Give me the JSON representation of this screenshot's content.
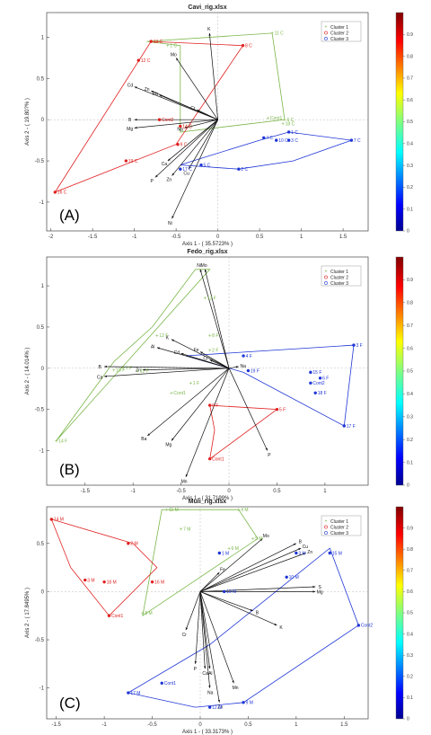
{
  "colors": {
    "cluster1": "#7ab648",
    "cluster2": "#e02020",
    "cluster3": "#1f36d6",
    "vector": "#111111"
  },
  "legend": [
    "Cluster 1",
    "Cluster 2",
    "Cluster 3"
  ],
  "colorbar_ticks": [
    "0",
    "0.1",
    "0.2",
    "0.3",
    "0.4",
    "0.5",
    "0.6",
    "0.7",
    "0.8",
    "0.9"
  ],
  "chart_data": [
    {
      "type": "scatter",
      "panel": "(A)",
      "title": "Cavi_rig.xlsx",
      "xlabel": "Axis 1 - ( 35.5723% )",
      "ylabel": "Axis 2 - ( 19.80?% )",
      "xlim": [
        -2.05,
        1.8
      ],
      "ylim": [
        -1.35,
        1.3
      ],
      "xticks": [
        -2,
        -1.5,
        -1,
        -0.5,
        0,
        0.5,
        1,
        1.5
      ],
      "yticks": [
        -1,
        -0.5,
        0,
        0.5,
        1
      ],
      "hulls": {
        "cluster1": [
          [
            -0.85,
            0.95
          ],
          [
            0.65,
            1.05
          ],
          [
            0.8,
            0
          ],
          [
            -0.45,
            -0.15
          ],
          [
            -0.45,
            0.9
          ]
        ],
        "cluster2": [
          [
            -1.95,
            -0.88
          ],
          [
            -0.8,
            0.95
          ],
          [
            0.3,
            0.9
          ],
          [
            -0.5,
            -0.3
          ]
        ],
        "cluster3": [
          [
            -0.45,
            -0.55
          ],
          [
            -0.3,
            -0.5
          ],
          [
            0.5,
            -0.25
          ],
          [
            0.85,
            -0.15
          ],
          [
            1.6,
            -0.25
          ],
          [
            0.9,
            -0.5
          ],
          [
            0.25,
            -0.6
          ]
        ]
      },
      "points": [
        {
          "label": "11 C",
          "x": 0.65,
          "y": 1.05,
          "c": "cluster1"
        },
        {
          "label": "1 C",
          "x": -0.6,
          "y": 0.9,
          "c": "cluster1"
        },
        {
          "label": "Cont1",
          "x": 0.6,
          "y": 0.02,
          "c": "cluster1"
        },
        {
          "label": "6 C",
          "x": 0.8,
          "y": 0,
          "c": "cluster1"
        },
        {
          "label": "18 C",
          "x": 0.78,
          "y": -0.05,
          "c": "cluster1"
        },
        {
          "label": "14 C",
          "x": -0.45,
          "y": -0.08,
          "c": "cluster1"
        },
        {
          "label": "13 C",
          "x": -0.8,
          "y": 0.95,
          "c": "cluster2"
        },
        {
          "label": "12 C",
          "x": -0.95,
          "y": 0.72,
          "c": "cluster2"
        },
        {
          "label": "8 C",
          "x": 0.3,
          "y": 0.9,
          "c": "cluster2"
        },
        {
          "label": "Cont2",
          "x": -0.7,
          "y": 0,
          "c": "cluster2"
        },
        {
          "label": "14 C",
          "x": -0.45,
          "y": -0.08,
          "c": "cluster2"
        },
        {
          "label": "9 C",
          "x": -0.48,
          "y": -0.3,
          "c": "cluster2"
        },
        {
          "label": "19 C",
          "x": -1.1,
          "y": -0.5,
          "c": "cluster2"
        },
        {
          "label": "16 C",
          "x": -1.95,
          "y": -0.88,
          "c": "cluster2"
        },
        {
          "label": "1 C",
          "x": 0.85,
          "y": -0.15,
          "c": "cluster3"
        },
        {
          "label": "4 C",
          "x": 0.55,
          "y": -0.22,
          "c": "cluster3"
        },
        {
          "label": "10 C",
          "x": 0.7,
          "y": -0.25,
          "c": "cluster3"
        },
        {
          "label": "3 C",
          "x": 0.85,
          "y": -0.25,
          "c": "cluster3"
        },
        {
          "label": "7 C",
          "x": 1.6,
          "y": -0.25,
          "c": "cluster3"
        },
        {
          "label": "2 C",
          "x": 0.25,
          "y": -0.6,
          "c": "cluster3"
        },
        {
          "label": "5 C",
          "x": -0.2,
          "y": -0.55,
          "c": "cluster3"
        },
        {
          "label": "17 C",
          "x": -0.45,
          "y": -0.6,
          "c": "cluster3"
        }
      ],
      "vectors": [
        {
          "label": "K",
          "x": -0.1,
          "y": 1.05
        },
        {
          "label": "Mo",
          "x": -0.5,
          "y": 0.75
        },
        {
          "label": "Cd",
          "x": -1,
          "y": 0.4
        },
        {
          "label": "Zn",
          "x": -0.8,
          "y": 0.35
        },
        {
          "label": "Pb",
          "x": -0.7,
          "y": 0.3
        },
        {
          "label": "Cr",
          "x": -0.25,
          "y": 0.12
        },
        {
          "label": "B",
          "x": -1,
          "y": 0
        },
        {
          "label": "Mg",
          "x": -1,
          "y": -0.1
        },
        {
          "label": "Na",
          "x": -0.4,
          "y": -0.1
        },
        {
          "label": "Ca",
          "x": -0.6,
          "y": -0.5
        },
        {
          "label": "P",
          "x": -0.75,
          "y": -0.7
        },
        {
          "label": "Zn",
          "x": -0.55,
          "y": -0.68
        },
        {
          "label": "Cu",
          "x": -0.35,
          "y": -0.6
        },
        {
          "label": "Ni",
          "x": -0.55,
          "y": -1.2
        }
      ]
    },
    {
      "type": "scatter",
      "panel": "(B)",
      "title": "Fedo_rig.xlsx",
      "xlabel": "Axis 1 - ( 31.7199% )",
      "ylabel": "Axis 2 - ( 14.014% )",
      "xlim": [
        -1.9,
        1.45
      ],
      "ylim": [
        -1.42,
        1.35
      ],
      "xticks": [
        -1.5,
        -1,
        -0.5,
        0,
        0.5,
        1
      ],
      "yticks": [
        -1,
        -0.5,
        0,
        0.5,
        1
      ],
      "hulls": {
        "cluster1": [
          [
            -1.8,
            -0.88
          ],
          [
            -1.2,
            0.08
          ],
          [
            -0.8,
            0.5
          ],
          [
            -0.35,
            1.2
          ],
          [
            -0.2,
            1.2
          ]
        ],
        "cluster2": [
          [
            -0.2,
            -0.45
          ],
          [
            -0.15,
            -0.75
          ],
          [
            -0.2,
            -1.1
          ],
          [
            0.5,
            -0.5
          ]
        ],
        "cluster3": [
          [
            -0.45,
            0.15
          ],
          [
            1.3,
            0.28
          ],
          [
            1.2,
            -0.7
          ],
          [
            0.15,
            -0.05
          ]
        ]
      },
      "points": [
        {
          "label": "13 F",
          "x": -0.25,
          "y": 0.85,
          "c": "cluster1"
        },
        {
          "label": "8 F",
          "x": -0.2,
          "y": 0.4,
          "c": "cluster1"
        },
        {
          "label": "12 F",
          "x": -0.75,
          "y": 0.4,
          "c": "cluster1"
        },
        {
          "label": "2 F",
          "x": -0.2,
          "y": 0.22,
          "c": "cluster1"
        },
        {
          "label": "10 F",
          "x": -1.2,
          "y": -0.02,
          "c": "cluster1"
        },
        {
          "label": "7 F",
          "x": -1.1,
          "y": 0,
          "c": "cluster1"
        },
        {
          "label": "11 F",
          "x": -0.95,
          "y": -0.03,
          "c": "cluster1"
        },
        {
          "label": "1 F",
          "x": -0.4,
          "y": -0.18,
          "c": "cluster1"
        },
        {
          "label": "Cont1",
          "x": -0.6,
          "y": -0.3,
          "c": "cluster1"
        },
        {
          "label": "14 F",
          "x": -1.8,
          "y": -0.88,
          "c": "cluster1"
        },
        {
          "label": "9 F",
          "x": -0.2,
          "y": -0.45,
          "c": "cluster2"
        },
        {
          "label": "5 F",
          "x": 0.5,
          "y": -0.5,
          "c": "cluster2"
        },
        {
          "label": "Cont1",
          "x": -0.2,
          "y": -1.1,
          "c": "cluster2"
        },
        {
          "label": "4 F",
          "x": 0.15,
          "y": 0.15,
          "c": "cluster3"
        },
        {
          "label": "3 F",
          "x": 1.3,
          "y": 0.28,
          "c": "cluster3"
        },
        {
          "label": "19 F",
          "x": 0.2,
          "y": -0.03,
          "c": "cluster3"
        },
        {
          "label": "15 F",
          "x": 0.85,
          "y": -0.05,
          "c": "cluster3"
        },
        {
          "label": "6 F",
          "x": 0.95,
          "y": -0.12,
          "c": "cluster3"
        },
        {
          "label": "Cont2",
          "x": 0.85,
          "y": -0.18,
          "c": "cluster3"
        },
        {
          "label": "18 F",
          "x": 0.9,
          "y": -0.3,
          "c": "cluster3"
        },
        {
          "label": "17 F",
          "x": 1.2,
          "y": -0.7,
          "c": "cluster3"
        }
      ],
      "vectors": [
        {
          "label": "Ni",
          "x": -0.3,
          "y": 1.2
        },
        {
          "label": "Mo",
          "x": -0.25,
          "y": 1.2
        },
        {
          "label": "K",
          "x": -0.6,
          "y": 0.35
        },
        {
          "label": "Al",
          "x": -0.75,
          "y": 0.25
        },
        {
          "label": "Cd",
          "x": -0.5,
          "y": 0.18
        },
        {
          "label": "Fe",
          "x": -0.3,
          "y": 0.2
        },
        {
          "label": "Cr",
          "x": -0.2,
          "y": 0.1
        },
        {
          "label": "Na",
          "x": 0.1,
          "y": 0.02
        },
        {
          "label": "B",
          "x": -1.3,
          "y": 0.02
        },
        {
          "label": "Zn",
          "x": -0.9,
          "y": -0.02
        },
        {
          "label": "Ca",
          "x": -1.3,
          "y": -0.1
        },
        {
          "label": "Ba",
          "x": -0.85,
          "y": -0.82
        },
        {
          "label": "Mg",
          "x": -0.6,
          "y": -0.88
        },
        {
          "label": "Mn",
          "x": -0.45,
          "y": -1.32
        },
        {
          "label": "P",
          "x": 0.4,
          "y": -1.0
        }
      ]
    },
    {
      "type": "scatter",
      "panel": "(C)",
      "title": "Muli_rig.xlsx",
      "xlabel": "Axis 1 - ( 33.3173% )",
      "ylabel": "Axis 2 - ( 17.8495% )",
      "xlim": [
        -1.6,
        1.75
      ],
      "ylim": [
        -1.32,
        0.88
      ],
      "xticks": [
        -1.5,
        -1,
        -0.5,
        0,
        0.5,
        1,
        1.5
      ],
      "yticks": [
        -1,
        -0.5,
        0,
        0.5
      ],
      "hulls": {
        "cluster1": [
          [
            -0.4,
            0.85
          ],
          [
            0.4,
            0.85
          ],
          [
            0.6,
            0.55
          ],
          [
            -0.6,
            -0.25
          ]
        ],
        "cluster2": [
          [
            -1.55,
            0.75
          ],
          [
            -0.7,
            0.5
          ],
          [
            -0.45,
            0.25
          ],
          [
            -0.95,
            -0.25
          ],
          [
            -1.35,
            0.25
          ]
        ],
        "cluster3": [
          [
            -0.75,
            -1.05
          ],
          [
            0.1,
            -0.55
          ],
          [
            1.35,
            0.45
          ],
          [
            1.65,
            -0.35
          ],
          [
            0.45,
            -1.15
          ],
          [
            -0.05,
            -1.2
          ]
        ]
      },
      "points": [
        {
          "label": "11 M",
          "x": -0.35,
          "y": 0.85,
          "c": "cluster1"
        },
        {
          "label": "4 M",
          "x": 0.4,
          "y": 0.85,
          "c": "cluster1"
        },
        {
          "label": "7 M",
          "x": -0.2,
          "y": 0.65,
          "c": "cluster1"
        },
        {
          "label": "5 M",
          "x": 0.55,
          "y": 0.55,
          "c": "cluster1"
        },
        {
          "label": "6 M",
          "x": 0.3,
          "y": 0.45,
          "c": "cluster1"
        },
        {
          "label": "8 M",
          "x": -0.6,
          "y": -0.22,
          "c": "cluster1"
        },
        {
          "label": "14 M",
          "x": -1.55,
          "y": 0.75,
          "c": "cluster2"
        },
        {
          "label": "2 M",
          "x": -0.75,
          "y": 0.5,
          "c": "cluster2"
        },
        {
          "label": "3 M",
          "x": -1.2,
          "y": 0.12,
          "c": "cluster2"
        },
        {
          "label": "18 M",
          "x": -1,
          "y": 0.1,
          "c": "cluster2"
        },
        {
          "label": "16 M",
          "x": -0.5,
          "y": 0.1,
          "c": "cluster2"
        },
        {
          "label": "Cont1",
          "x": -0.95,
          "y": -0.25,
          "c": "cluster2"
        },
        {
          "label": "1 M",
          "x": 0.2,
          "y": 0.4,
          "c": "cluster3"
        },
        {
          "label": "3 M",
          "x": 1,
          "y": 0.4,
          "c": "cluster3"
        },
        {
          "label": "15 M",
          "x": 1.35,
          "y": 0.4,
          "c": "cluster3"
        },
        {
          "label": "10 M",
          "x": 0.9,
          "y": 0.15,
          "c": "cluster3"
        },
        {
          "label": "19 M",
          "x": 0.25,
          "y": 0,
          "c": "cluster3"
        },
        {
          "label": "Cont2",
          "x": 1.65,
          "y": -0.35,
          "c": "cluster3"
        },
        {
          "label": "Cont1",
          "x": -0.4,
          "y": -0.95,
          "c": "cluster3"
        },
        {
          "label": "17 M",
          "x": -0.75,
          "y": -1.05,
          "c": "cluster3"
        },
        {
          "label": "12 M",
          "x": 0.1,
          "y": -1.2,
          "c": "cluster3"
        },
        {
          "label": "9 M",
          "x": 0.45,
          "y": -1.15,
          "c": "cluster3"
        }
      ],
      "vectors": [
        {
          "label": "Mo",
          "x": 0.65,
          "y": 0.55
        },
        {
          "label": "B",
          "x": 1.0,
          "y": 0.5
        },
        {
          "label": "Cu",
          "x": 1.05,
          "y": 0.45
        },
        {
          "label": "Zn",
          "x": 1.1,
          "y": 0.4
        },
        {
          "label": "Fe",
          "x": 0.2,
          "y": 0.2
        },
        {
          "label": "S",
          "x": 1.2,
          "y": 0.05
        },
        {
          "label": "Mg",
          "x": 1.2,
          "y": 0
        },
        {
          "label": "B",
          "x": 0.55,
          "y": -0.2
        },
        {
          "label": "K",
          "x": 0.8,
          "y": -0.35
        },
        {
          "label": "Cr",
          "x": -0.15,
          "y": -0.4
        },
        {
          "label": "Ca",
          "x": 0.05,
          "y": -0.8
        },
        {
          "label": "Al",
          "x": 0.1,
          "y": -0.8
        },
        {
          "label": "Na",
          "x": 0.1,
          "y": -1.0
        },
        {
          "label": "Mn",
          "x": 0.35,
          "y": -0.95
        },
        {
          "label": "Zn",
          "x": 0.2,
          "y": -1.15
        },
        {
          "label": "P",
          "x": -0.05,
          "y": -0.75
        }
      ]
    }
  ]
}
